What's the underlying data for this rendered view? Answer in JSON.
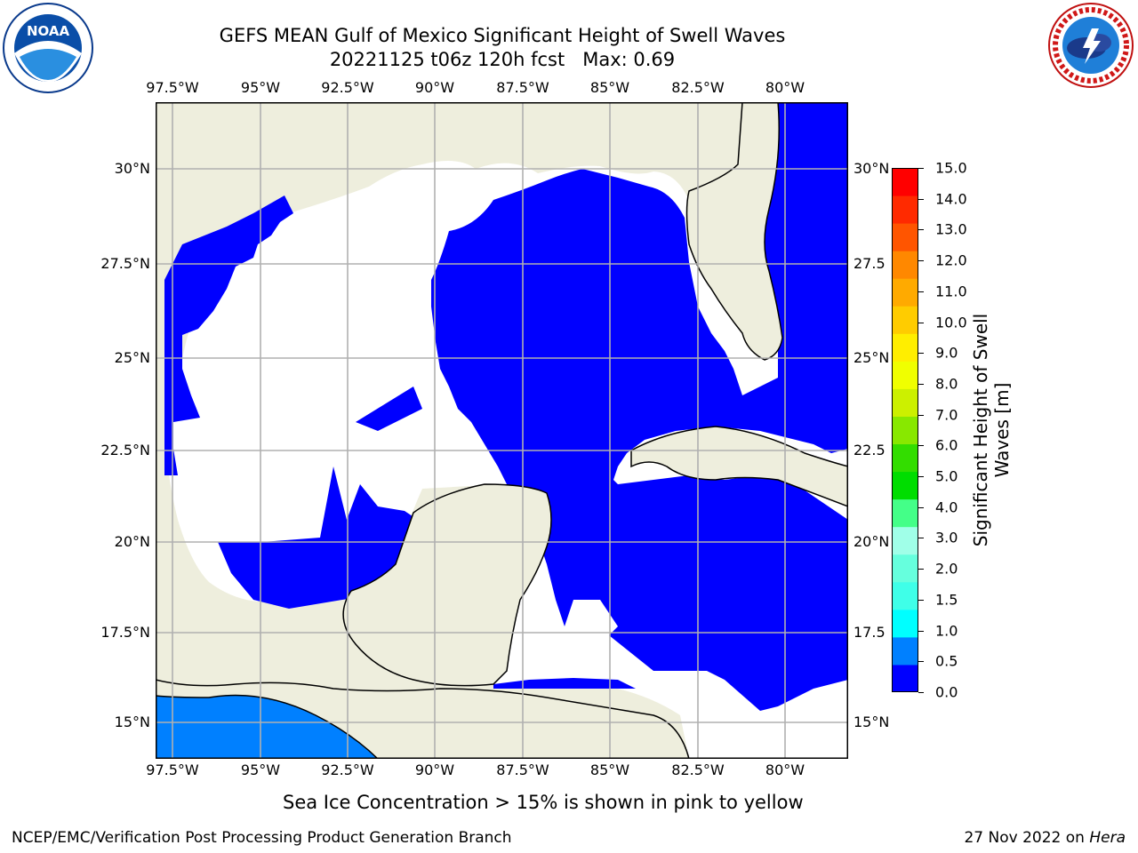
{
  "header": {
    "title_line1": "GEFS MEAN Gulf of Mexico Significant Height of Swell Waves",
    "title_line2": "20221125 t06z 120h fcst   Max: 0.69"
  },
  "logos": {
    "left": {
      "name": "noaa-logo",
      "text": "NOAA",
      "ring_text": "NATIONAL OCEANIC AND ATMOSPHERIC ADMINISTRATION · U.S. DEPARTMENT OF COMMERCE"
    },
    "right": {
      "name": "nws-logo",
      "ring_text": "NATIONAL WEATHER SERVICE"
    }
  },
  "map": {
    "lon_ticks": [
      "97.5°W",
      "95°W",
      "92.5°W",
      "90°W",
      "87.5°W",
      "85°W",
      "82.5°W",
      "80°W"
    ],
    "lat_ticks": [
      "30°N",
      "27.5°N",
      "25°N",
      "22.5°N",
      "20°N",
      "17.5°N",
      "15°N"
    ],
    "lat_ticks_right": [
      "30°N",
      "27.5",
      "25°N",
      "22.5",
      "20°N",
      "17.5",
      "15°N"
    ],
    "colors": {
      "land": "#eeeedd",
      "ocean_zero": "#0000ff",
      "ocean_low": "#0080ff",
      "nodata": "#ffffff",
      "grid": "#b0b0b0"
    }
  },
  "colorbar": {
    "label_line1": "Significant Height of Swell",
    "label_line2": "Waves [m]",
    "ticks": [
      "15.0",
      "14.0",
      "13.0",
      "12.0",
      "11.0",
      "10.0",
      "9.0",
      "8.0",
      "7.0",
      "6.0",
      "5.0",
      "4.0",
      "3.0",
      "2.0",
      "1.5",
      "1.0",
      "0.5",
      "0.0"
    ],
    "colors": [
      "#0000ff",
      "#0080ff",
      "#00ffff",
      "#3fffe8",
      "#66ffdd",
      "#a0ffe8",
      "#44ff88",
      "#00dd00",
      "#33dd00",
      "#88e800",
      "#ccf000",
      "#f0ff00",
      "#ffee00",
      "#ffcc00",
      "#ffaa00",
      "#ff8800",
      "#ff5500",
      "#ff2a00",
      "#ff0000"
    ]
  },
  "footer": {
    "note": "Sea Ice Concentration > 15% is shown in pink to yellow",
    "left": "NCEP/EMC/Verification Post Processing Product Generation Branch",
    "right_date": "27 Nov 2022 on ",
    "right_machine": "Hera"
  }
}
